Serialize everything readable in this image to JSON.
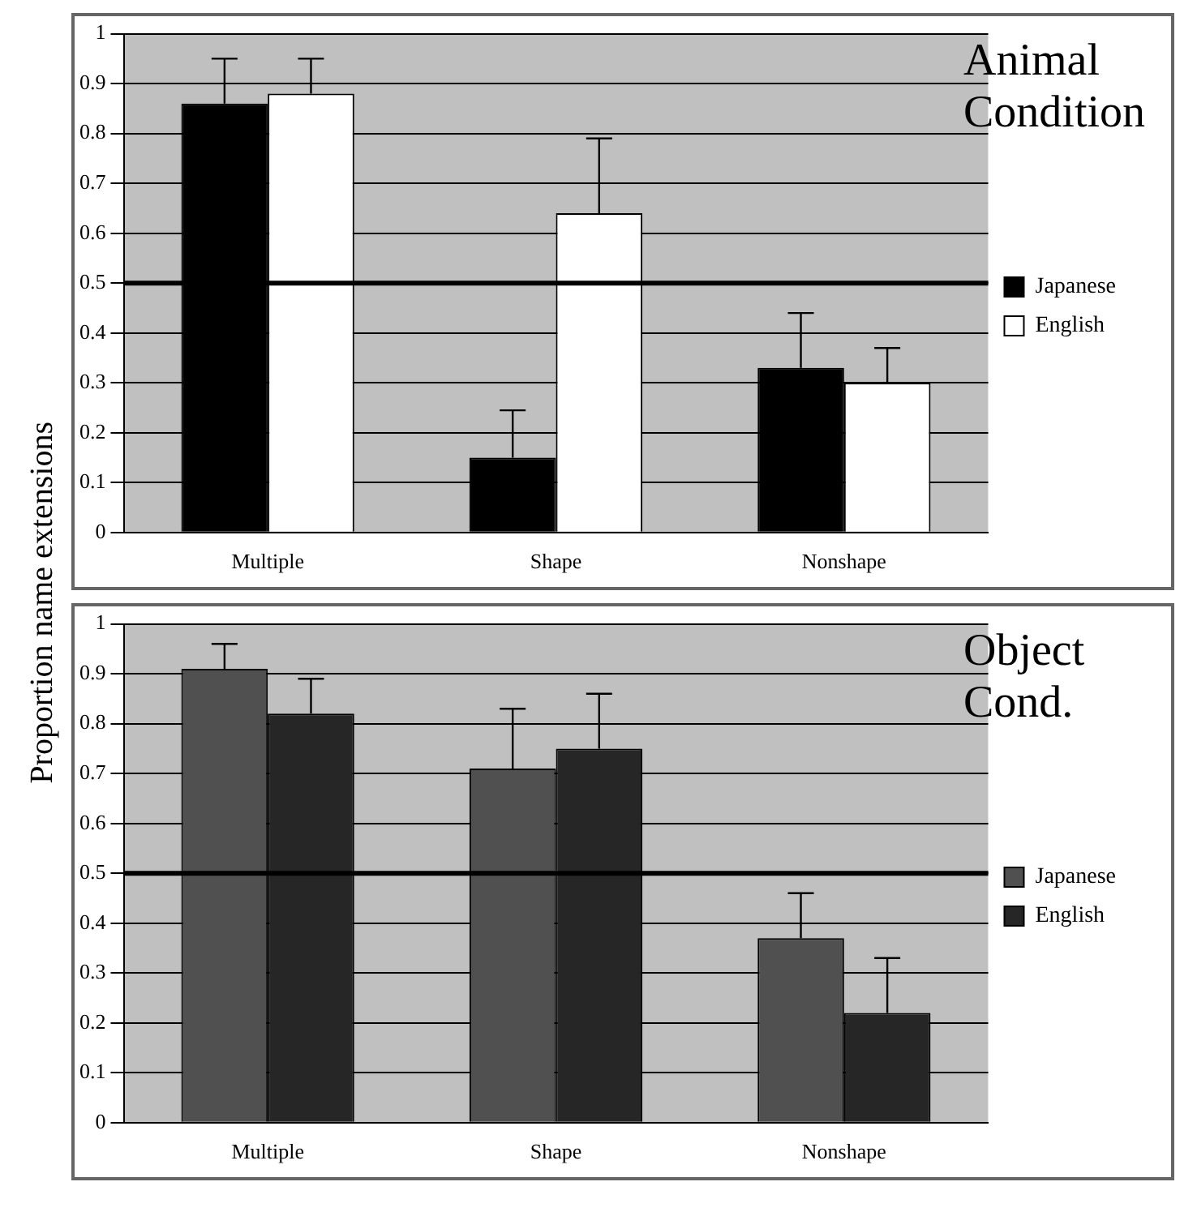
{
  "chart_data": [
    {
      "type": "bar",
      "title": "Animal Condition",
      "ylabel": "Proportion name extensions",
      "categories": [
        "Multiple",
        "Shape",
        "Nonshape"
      ],
      "series": [
        {
          "name": "Japanese",
          "color": "#000000",
          "values": [
            0.86,
            0.15,
            0.33
          ],
          "errors": [
            [
              0.86,
              0.95
            ],
            [
              0.15,
              0.245
            ],
            [
              0.33,
              0.44
            ]
          ]
        },
        {
          "name": "English",
          "color": "#ffffff",
          "values": [
            0.88,
            0.64,
            0.3
          ],
          "errors": [
            [
              0.88,
              0.95
            ],
            [
              0.64,
              0.79
            ],
            [
              0.3,
              0.37
            ]
          ]
        }
      ],
      "ylim": [
        0,
        1
      ],
      "yticks": [
        0,
        0.1,
        0.2,
        0.3,
        0.4,
        0.5,
        0.6,
        0.7,
        0.8,
        0.9,
        1
      ],
      "grid": "y",
      "legend": "right",
      "ref_lines": [
        {
          "axis": "y",
          "value": 0.5,
          "color": "#000000"
        }
      ]
    },
    {
      "type": "bar",
      "title": "Object Cond.",
      "categories": [
        "Multiple",
        "Shape",
        "Nonshape"
      ],
      "series": [
        {
          "name": "Japanese",
          "color": "#505050",
          "values": [
            0.91,
            0.71,
            0.37
          ],
          "errors": [
            [
              0.91,
              0.96
            ],
            [
              0.71,
              0.83
            ],
            [
              0.37,
              0.46
            ]
          ]
        },
        {
          "name": "English",
          "color": "#262626",
          "values": [
            0.82,
            0.75,
            0.22
          ],
          "errors": [
            [
              0.82,
              0.89
            ],
            [
              0.75,
              0.86
            ],
            [
              0.22,
              0.33
            ]
          ]
        }
      ],
      "ylim": [
        0,
        1
      ],
      "yticks": [
        0,
        0.1,
        0.2,
        0.3,
        0.4,
        0.5,
        0.6,
        0.7,
        0.8,
        0.9,
        1
      ],
      "grid": "y",
      "legend": "right",
      "ref_lines": [
        {
          "axis": "y",
          "value": 0.5,
          "color": "#000000"
        }
      ]
    }
  ]
}
